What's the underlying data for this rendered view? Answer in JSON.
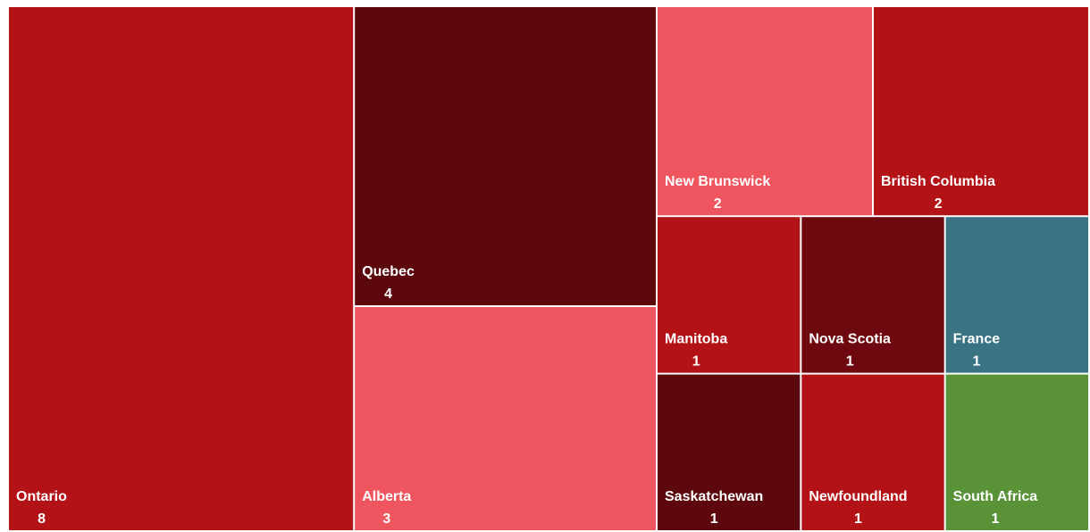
{
  "chart_data": {
    "type": "treemap",
    "categories": [
      "Ontario",
      "Quebec",
      "Alberta",
      "New Brunswick",
      "British Columbia",
      "Manitoba",
      "Nova Scotia",
      "France",
      "Saskatchewan",
      "Newfoundland",
      "South Africa"
    ],
    "values": [
      8,
      4,
      3,
      2,
      2,
      1,
      1,
      1,
      1,
      1,
      1
    ],
    "colors": [
      "#b31217",
      "#5c080c",
      "#ef555e",
      "#ef555e",
      "#b31217",
      "#b31217",
      "#6e090f",
      "#3a7483",
      "#5c080c",
      "#b31217",
      "#5a9237"
    ]
  }
}
